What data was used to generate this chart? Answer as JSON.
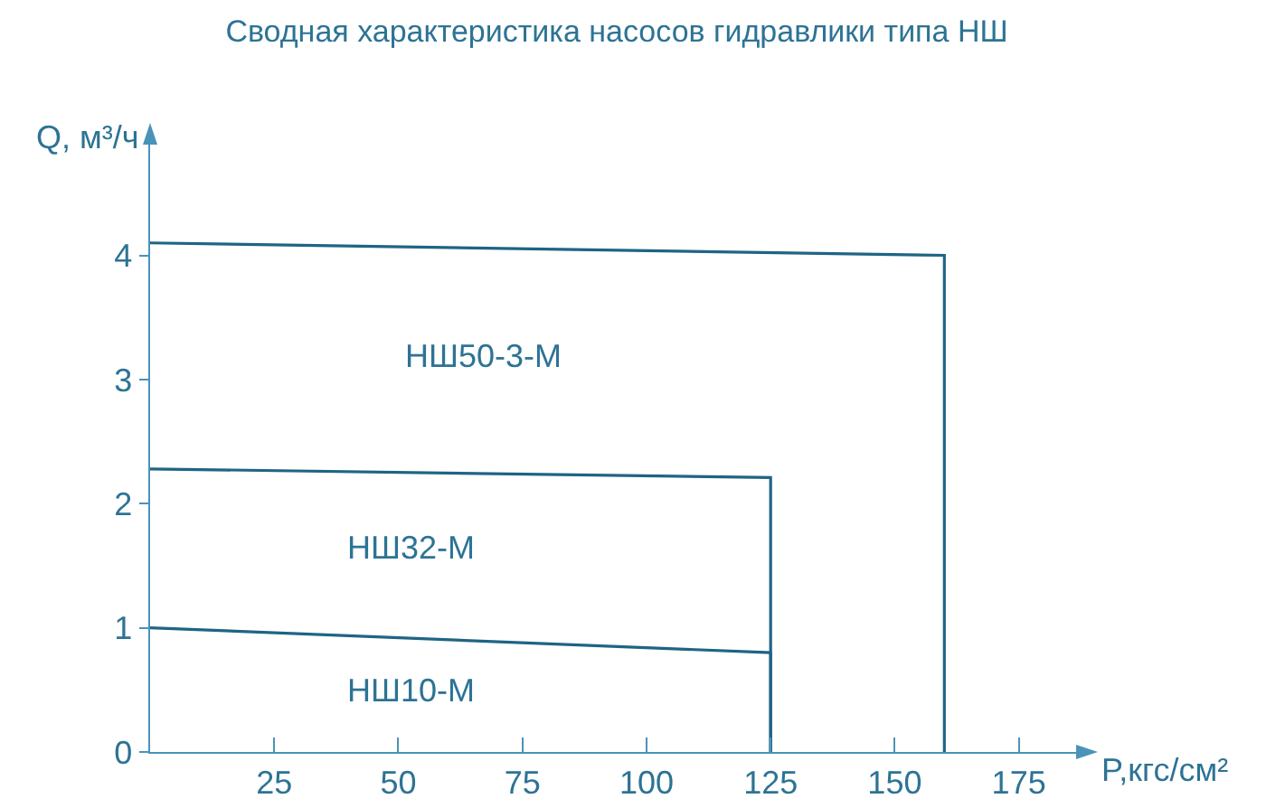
{
  "chart_data": {
    "type": "line",
    "title": "Сводная характеристика насосов гидравлики типа НШ",
    "xlabel": "P,кгс/см²",
    "ylabel": "Q, м³/ч",
    "series": [
      {
        "name": "НШ10-М",
        "color": "#1f6485",
        "x": [
          0,
          125,
          125
        ],
        "values": [
          1.0,
          0.8,
          0
        ]
      },
      {
        "name": "НШ32-М",
        "color": "#1f6485",
        "x": [
          0,
          125,
          125
        ],
        "values": [
          2.28,
          2.21,
          0
        ]
      },
      {
        "name": "НШ50-3-М",
        "color": "#1f6485",
        "x": [
          0,
          160,
          160
        ],
        "values": [
          4.1,
          4.0,
          0
        ]
      }
    ],
    "xlim": [
      0,
      188
    ],
    "ylim": [
      0,
      4.95
    ],
    "xticks": [
      25,
      50,
      75,
      100,
      125,
      150,
      175
    ],
    "yticks": [
      0,
      1,
      2,
      3,
      4
    ],
    "grid": false,
    "legend": false,
    "marker": "none",
    "line_style": "solid"
  }
}
